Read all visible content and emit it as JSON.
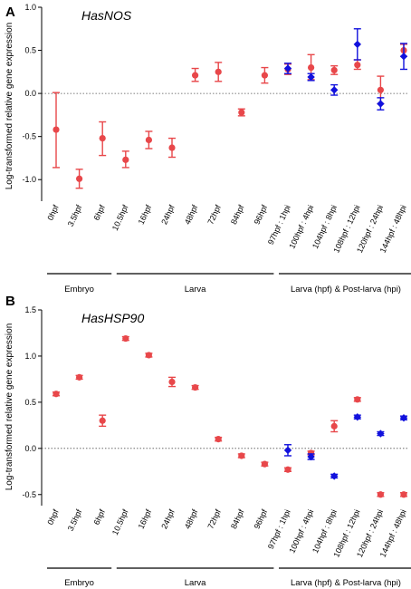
{
  "chart_data": [
    {
      "panel": "A",
      "type": "scatter",
      "title": "HasNOS",
      "ylabel": "Log-transformed relative gene expression",
      "ylim": [
        -1.25,
        1.0
      ],
      "yticks": [
        "-1.0",
        "-0.5",
        "0.0",
        "0.5",
        "1.0"
      ],
      "ytick_values": [
        -1.0,
        -0.5,
        0.0,
        0.5,
        1.0
      ],
      "reference_line": 0.0,
      "categories": [
        "0hpf",
        "3.5hpf",
        "6hpf",
        "10.5hpf",
        "16hpf",
        "24hpf",
        "48hpf",
        "72hpf",
        "84hpf",
        "96hpf",
        "97hpf : 1hpi",
        "100hpf : 4hpi",
        "104hpf : 8hpi",
        "108hpf : 12hpi",
        "120hpf : 24hpi",
        "144hpf : 48hpi"
      ],
      "series": [
        {
          "color": "#e8474a",
          "marker": "circle",
          "values": [
            -0.42,
            -0.99,
            -0.52,
            -0.77,
            -0.54,
            -0.63,
            0.21,
            0.25,
            -0.22,
            0.21,
            0.28,
            0.3,
            0.27,
            0.33,
            0.04,
            0.5
          ],
          "err_low": [
            -0.86,
            -1.1,
            -0.72,
            -0.86,
            -0.64,
            -0.74,
            0.14,
            0.14,
            -0.26,
            0.12,
            0.22,
            0.16,
            0.22,
            0.28,
            -0.12,
            0.43
          ],
          "err_high": [
            0.01,
            -0.88,
            -0.33,
            -0.67,
            -0.44,
            -0.52,
            0.29,
            0.36,
            -0.18,
            0.3,
            0.34,
            0.45,
            0.32,
            0.39,
            0.2,
            0.57
          ]
        },
        {
          "color": "#1111dd",
          "marker": "diamond",
          "start_index": 10,
          "values": [
            0.29,
            0.19,
            0.04,
            0.57,
            -0.12,
            0.43
          ],
          "err_low": [
            0.23,
            0.15,
            -0.02,
            0.39,
            -0.19,
            0.28
          ],
          "err_high": [
            0.35,
            0.23,
            0.1,
            0.75,
            -0.05,
            0.58
          ]
        }
      ],
      "groups": [
        {
          "label": "Embryo",
          "from": 0,
          "to": 2
        },
        {
          "label": "Larva",
          "from": 3,
          "to": 9
        },
        {
          "label": "Larva (hpf) & Post-larva (hpi)",
          "from": 10,
          "to": 15
        }
      ]
    },
    {
      "panel": "B",
      "type": "scatter",
      "title": "HasHSP90",
      "ylabel": "Log-transformed relative gene expression",
      "ylim": [
        -0.62,
        1.5
      ],
      "yticks": [
        "-0.5",
        "0.0",
        "0.5",
        "1.0",
        "1.5"
      ],
      "ytick_values": [
        -0.5,
        0.0,
        0.5,
        1.0,
        1.5
      ],
      "reference_line": 0.0,
      "categories": [
        "0hpf",
        "3.5hpf",
        "6hpf",
        "10.5hpf",
        "16hpf",
        "24hpf",
        "48hpf",
        "72hpf",
        "84hpf",
        "96hpf",
        "97hpf : 1hpi",
        "100hpf : 4hpi",
        "104hpf : 8hpi",
        "108hpf : 12hpi",
        "120hpf : 24hpi",
        "144hpf : 48hpi"
      ],
      "series": [
        {
          "color": "#e8474a",
          "marker": "circle",
          "values": [
            0.59,
            0.77,
            0.3,
            1.19,
            1.01,
            0.72,
            0.66,
            0.1,
            -0.08,
            -0.17,
            -0.23,
            -0.05,
            0.24,
            0.53,
            -0.5,
            -0.5
          ],
          "err_low": [
            0.57,
            0.75,
            0.24,
            1.17,
            0.99,
            0.67,
            0.64,
            0.08,
            -0.1,
            -0.19,
            -0.25,
            -0.07,
            0.18,
            0.51,
            -0.52,
            -0.52
          ],
          "err_high": [
            0.61,
            0.79,
            0.36,
            1.21,
            1.03,
            0.77,
            0.68,
            0.12,
            -0.06,
            -0.15,
            -0.21,
            -0.03,
            0.3,
            0.55,
            -0.48,
            -0.48
          ]
        },
        {
          "color": "#1111dd",
          "marker": "diamond",
          "start_index": 10,
          "values": [
            -0.02,
            -0.09,
            -0.3,
            0.34,
            0.16,
            0.33
          ],
          "err_low": [
            -0.08,
            -0.12,
            -0.32,
            0.32,
            0.14,
            0.31
          ],
          "err_high": [
            0.04,
            -0.06,
            -0.28,
            0.36,
            0.18,
            0.35
          ]
        }
      ],
      "groups": [
        {
          "label": "Embryo",
          "from": 0,
          "to": 2
        },
        {
          "label": "Larva",
          "from": 3,
          "to": 9
        },
        {
          "label": "Larva (hpf) & Post-larva (hpi)",
          "from": 10,
          "to": 15
        }
      ]
    }
  ]
}
